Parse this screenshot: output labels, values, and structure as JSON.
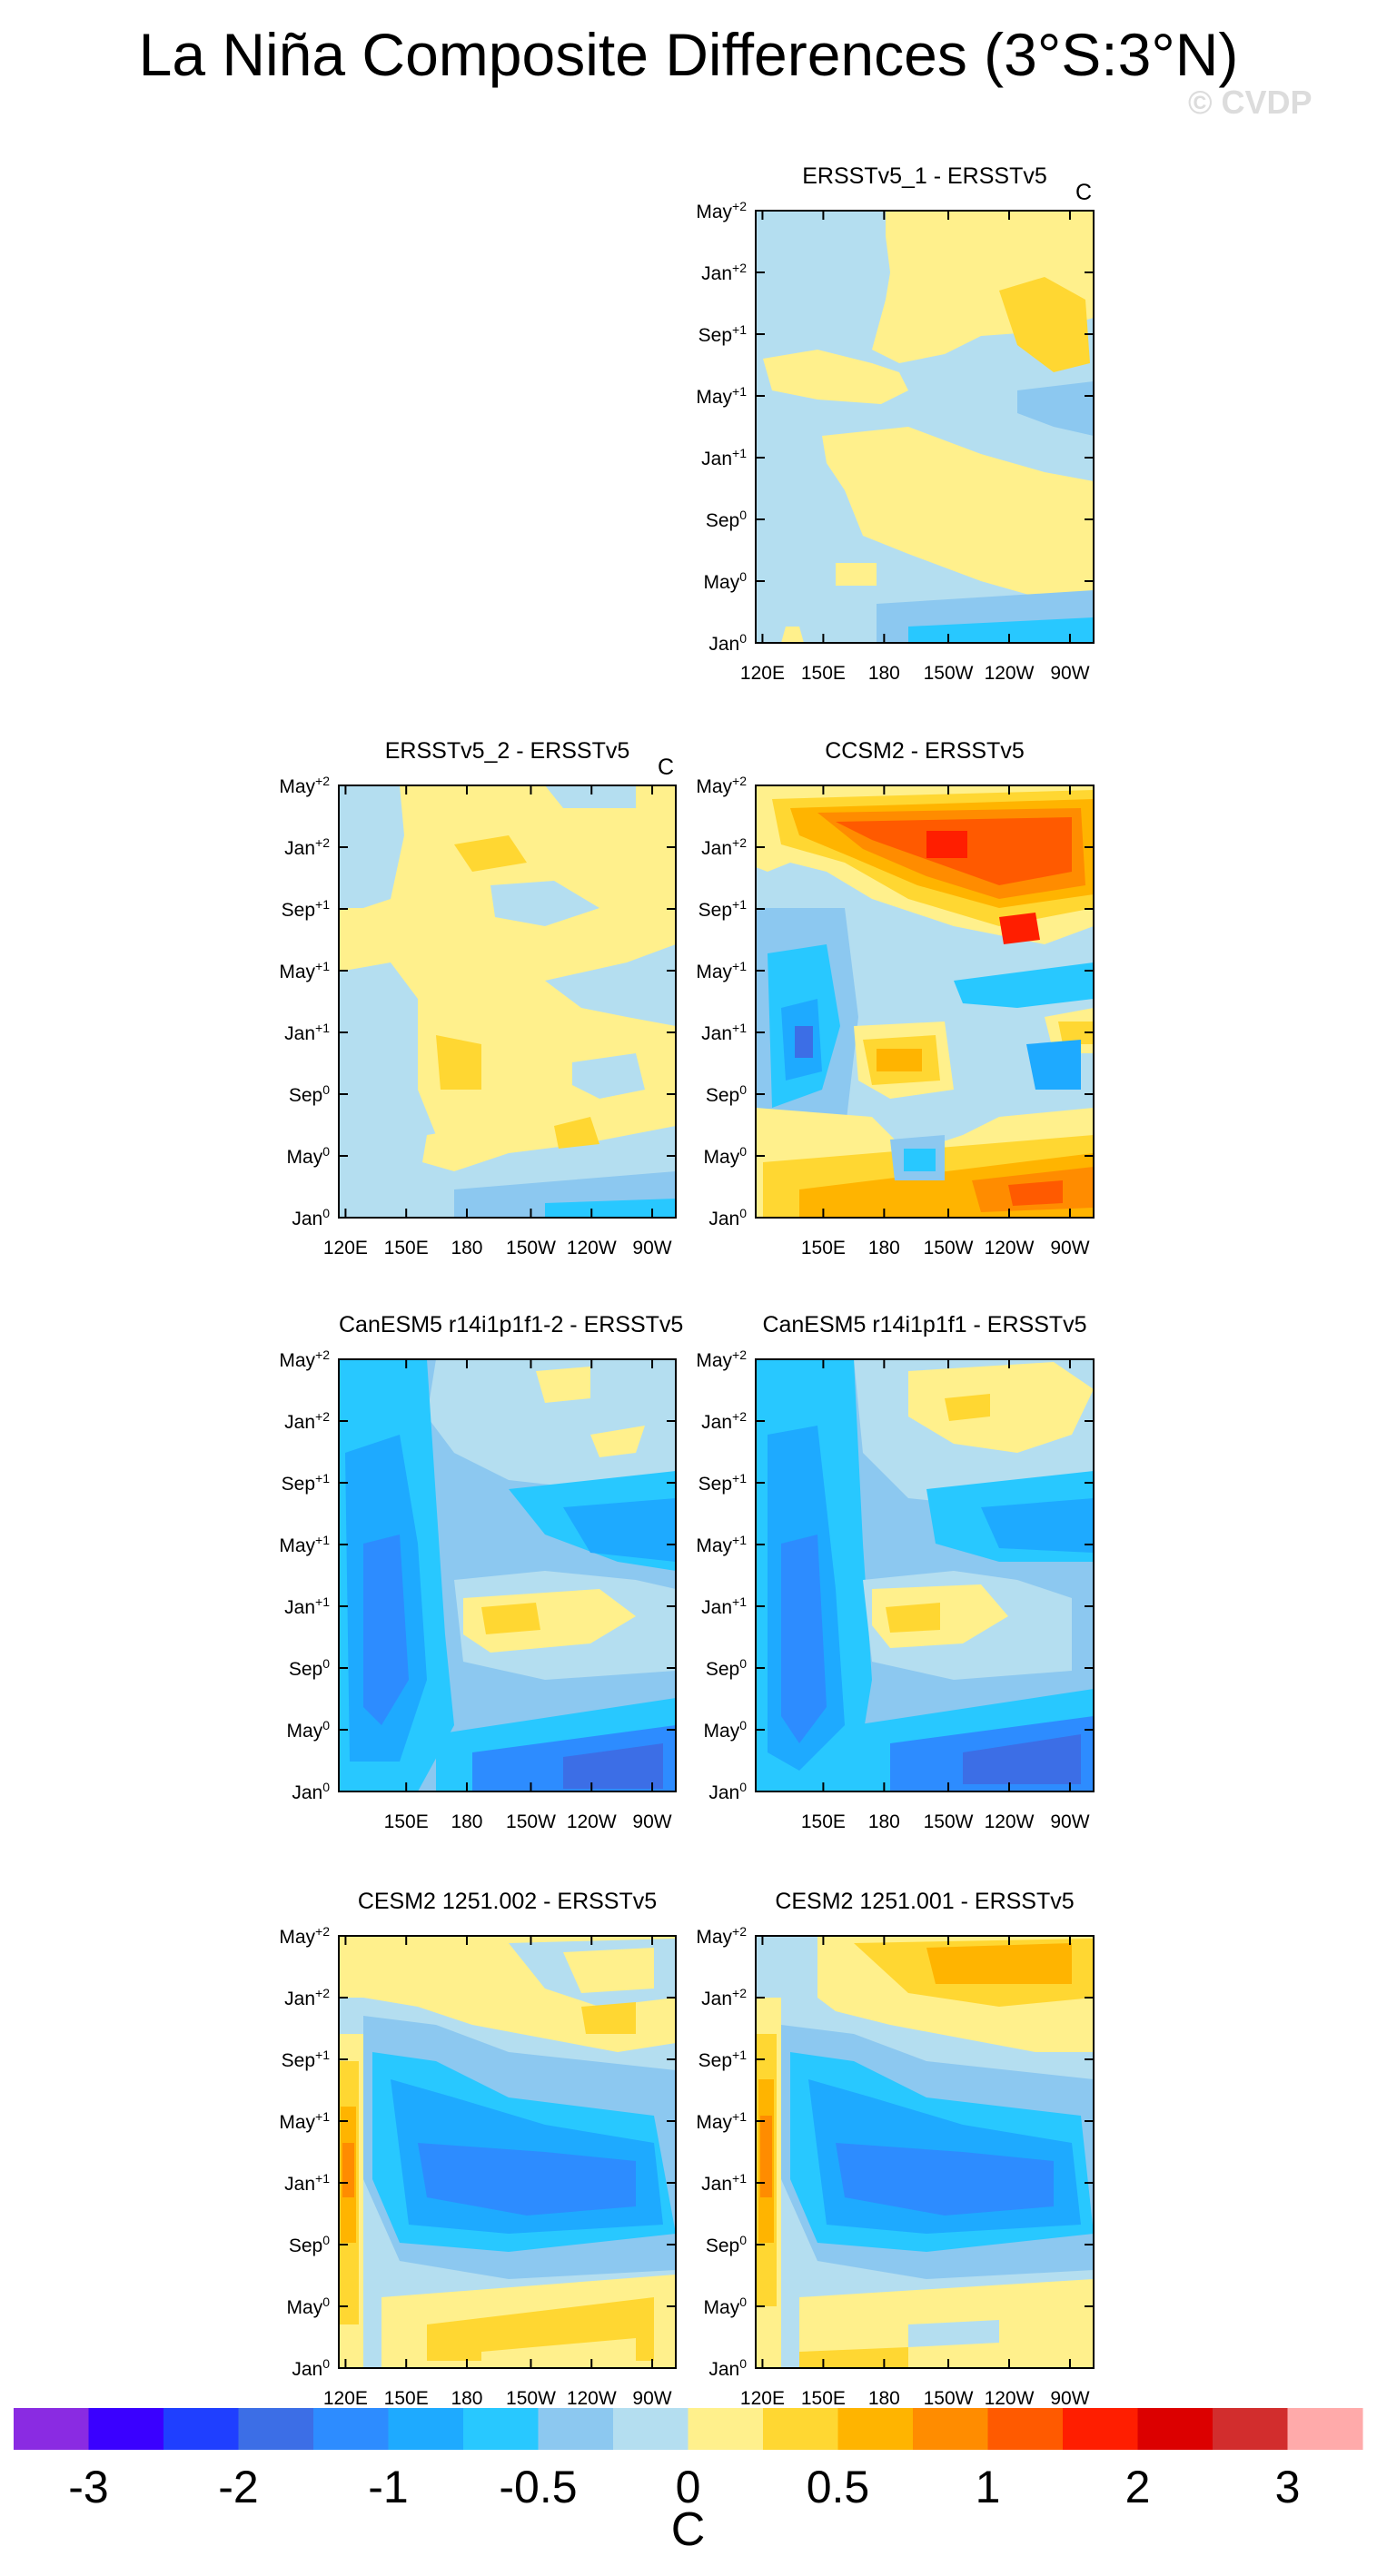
{
  "title": "La Niña Composite Differences (3°S:3°N)",
  "watermark": "© CVDP",
  "y_ticks": [
    "Jan",
    "May",
    "Sep",
    "Jan",
    "May",
    "Sep",
    "Jan",
    "May"
  ],
  "y_tick_sups": [
    "0",
    "0",
    "0",
    "+1",
    "+1",
    "+1",
    "+2",
    "+2"
  ],
  "x_ticks_full": [
    "120E",
    "150E",
    "180",
    "150W",
    "120W",
    "90W"
  ],
  "colorbar": {
    "colors": [
      "#8a2be2",
      "#3a00ff",
      "#1f3fff",
      "#3c6ee6",
      "#2d8cff",
      "#1eaaff",
      "#28c8ff",
      "#8cc8f0",
      "#b4def0",
      "#fff08c",
      "#ffd732",
      "#ffb400",
      "#ff8c00",
      "#ff5a00",
      "#ff1e00",
      "#dc0000",
      "#d22d2d",
      "#ffaaaa"
    ],
    "labels": [
      "-3",
      "-2",
      "-1",
      "-0.5",
      "0",
      "0.5",
      "1",
      "2",
      "3"
    ],
    "unit": "C"
  },
  "chart_data": [
    {
      "type": "heatmap",
      "title": "ERSSTv5_1 - ERSSTv5",
      "unit": "C",
      "xlabels": [
        "120E",
        "150E",
        "180",
        "150W",
        "120W",
        "90W"
      ],
      "ylabels": [
        "Jan0",
        "May0",
        "Sep0",
        "Jan+1",
        "May+1",
        "Sep+1",
        "Jan+2",
        "May+2"
      ],
      "summary": "mostly light negative (-0.25 to 0) with positive (0 to 0.25) patches in central/eastern Pacific"
    },
    {
      "type": "heatmap",
      "title": "ERSSTv5_2 - ERSSTv5",
      "unit": "C",
      "xlabels": [
        "120E",
        "150E",
        "180",
        "150W",
        "120W",
        "90W"
      ],
      "ylabels": [
        "Jan0",
        "May0",
        "Sep0",
        "Jan+1",
        "May+1",
        "Sep+1",
        "Jan+2",
        "May+2"
      ],
      "summary": "mostly weak positive (0 to 0.25) with weak negative patches"
    },
    {
      "type": "heatmap",
      "title": "CCSM2 - ERSSTv5",
      "unit": "C",
      "xlabels": [
        "150E",
        "180",
        "150W",
        "120W",
        "90W"
      ],
      "ylabels": [
        "Jan0",
        "May0",
        "Sep0",
        "Jan+1",
        "May+1",
        "Sep+1",
        "Jan+2",
        "May+2"
      ],
      "summary": "strong positive (1 to 2) in year +2 east of 150E; negative (-1) west in year +1"
    },
    {
      "type": "heatmap",
      "title": "CanESM5 r14i1p1f1-2 - ERSSTv5",
      "unit": "C",
      "xlabels": [
        "150E",
        "180",
        "150W",
        "120W",
        "90W"
      ],
      "ylabels": [
        "Jan0",
        "May0",
        "Sep0",
        "Jan+1",
        "May+1",
        "Sep+1",
        "Jan+2",
        "May+2"
      ],
      "summary": "widespread negative (-0.5 to -1.5), positive band near Jan+1 in central Pacific"
    },
    {
      "type": "heatmap",
      "title": "CanESM5 r14i1p1f1 - ERSSTv5",
      "unit": "C",
      "xlabels": [
        "150E",
        "180",
        "150W",
        "120W",
        "90W"
      ],
      "ylabels": [
        "Jan0",
        "May0",
        "Sep0",
        "Jan+1",
        "May+1",
        "Sep+1",
        "Jan+2",
        "May+2"
      ],
      "summary": "widespread negative (-0.5 to -1.5), positive band near Jan+1 and late year +2"
    },
    {
      "type": "heatmap",
      "title": "CESM2 1251.002 - ERSSTv5",
      "unit": "C",
      "xlabels": [
        "120E",
        "150E",
        "180",
        "150W",
        "120W",
        "90W"
      ],
      "ylabels": [
        "Jan0",
        "May0",
        "Sep0",
        "Jan+1",
        "May+1",
        "Sep+1",
        "Jan+2",
        "May+2"
      ],
      "summary": "positive (0.5 to 1) along western edge; negative (-1 to -1.5) core in year +1; positive year 0 and year +2"
    },
    {
      "type": "heatmap",
      "title": "CESM2 1251.001 - ERSSTv5",
      "unit": "C",
      "xlabels": [
        "120E",
        "150E",
        "180",
        "150W",
        "120W",
        "90W"
      ],
      "ylabels": [
        "Jan0",
        "May0",
        "Sep0",
        "Jan+1",
        "May+1",
        "Sep+1",
        "Jan+2",
        "May+2"
      ],
      "summary": "positive (0.5 to 1) along western edge; negative (-1 to -1.5) core in year +1; positive year +2"
    }
  ]
}
